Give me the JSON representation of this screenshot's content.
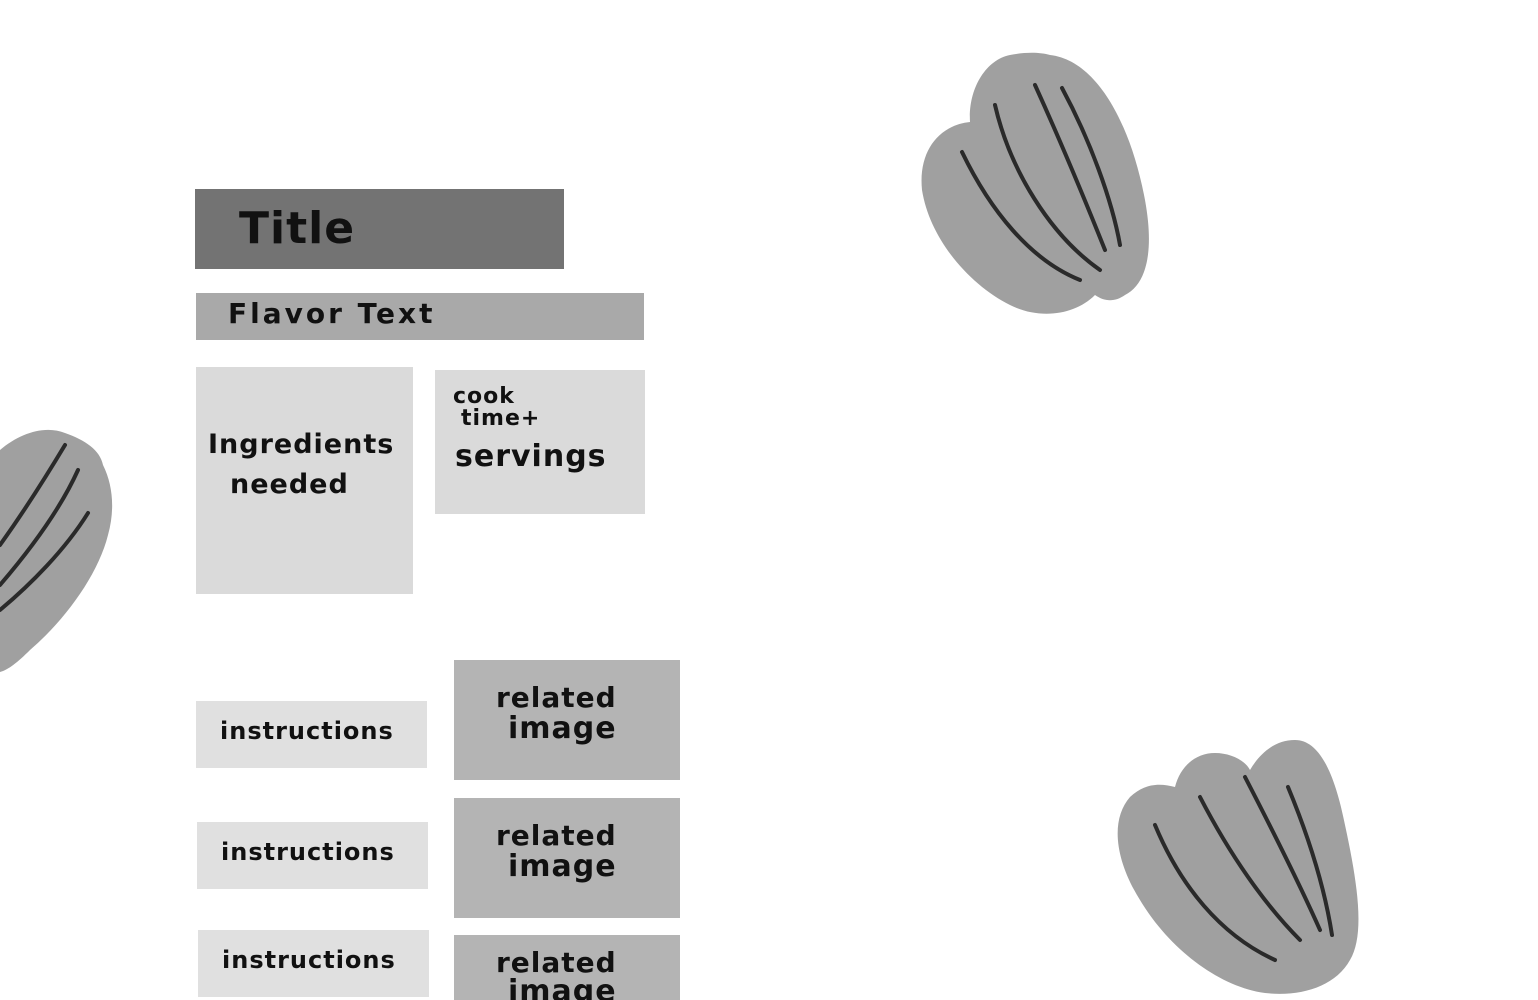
{
  "diagram": {
    "title": "Title",
    "flavor_text": "Flavor Text",
    "ingredients": {
      "line1": "Ingredients",
      "line2": "needed"
    },
    "cook_info": {
      "line1": "cook",
      "line2": "time+",
      "line3": "servings"
    },
    "steps": [
      {
        "instructions": "instructions",
        "image_line1": "related",
        "image_line2": "image"
      },
      {
        "instructions": "instructions",
        "image_line1": "related",
        "image_line2": "image"
      },
      {
        "instructions": "instructions",
        "image_line1": "related",
        "image_line2": "image"
      }
    ]
  },
  "decorations": {
    "leaf_color": "#a0a0a0",
    "vein_color": "#2a2a2a",
    "icons": [
      "leaf-icon",
      "leaf-icon",
      "leaf-icon"
    ]
  },
  "colors": {
    "title_bg": "#737373",
    "flavor_bg": "#a9a9a9",
    "panel_bg": "#dadada",
    "instructions_bg": "#e0e0e0",
    "image_bg": "#b4b4b4"
  }
}
